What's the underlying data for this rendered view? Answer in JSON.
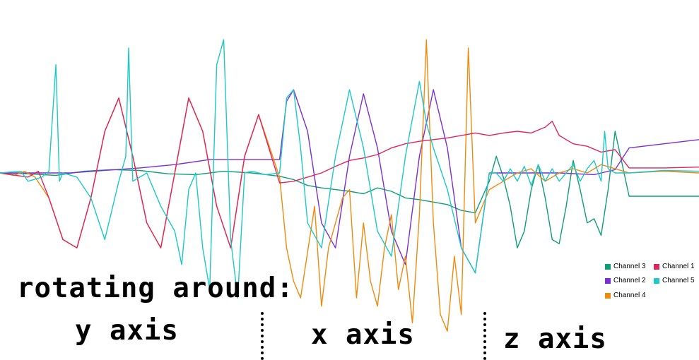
{
  "chart_data": {
    "type": "line",
    "title": "",
    "xlabel": "",
    "ylabel": "",
    "grid": false,
    "axes_visible": false,
    "x_range": [
      0,
      100
    ],
    "y_range": [
      -1,
      1
    ],
    "legend_position": "bottom-right",
    "annotations": {
      "heading": "rotating around:",
      "segments": [
        "y axis",
        "x axis",
        "z axis"
      ],
      "segment_boundaries": [
        37.5,
        69.3
      ]
    },
    "series": [
      {
        "name": "Channel 3",
        "color": "#0f9d78",
        "legend_order": 0,
        "x": [
          0,
          4,
          8,
          12,
          16,
          20,
          24,
          28,
          32,
          36,
          40,
          42,
          44,
          46,
          48,
          50,
          52,
          54,
          56,
          58,
          60,
          62,
          64,
          66,
          68,
          70,
          71,
          72,
          73,
          74,
          75,
          76,
          77,
          78,
          79,
          80,
          81,
          82,
          83,
          84,
          85,
          86,
          87,
          88,
          90,
          95,
          100
        ],
        "y": [
          0.0,
          -0.01,
          -0.03,
          0.02,
          0.04,
          0.03,
          -0.01,
          -0.02,
          0.02,
          0.0,
          -0.04,
          -0.08,
          -0.15,
          -0.18,
          -0.2,
          -0.22,
          -0.25,
          -0.18,
          -0.22,
          -0.3,
          -0.32,
          -0.35,
          -0.38,
          -0.45,
          -0.48,
          -0.1,
          0.2,
          -0.05,
          -0.4,
          -0.9,
          -0.7,
          -0.2,
          0.1,
          -0.3,
          -0.8,
          -0.85,
          -0.4,
          0.15,
          -0.2,
          -0.6,
          -0.55,
          -0.75,
          -0.2,
          0.5,
          -0.28,
          -0.28,
          -0.28
        ]
      },
      {
        "name": "Channel 2",
        "color": "#7b2fd0",
        "legend_order": 1,
        "x": [
          0,
          10,
          20,
          25,
          30,
          35,
          40,
          41,
          42,
          44,
          46,
          48,
          50,
          52,
          54,
          56,
          58,
          60,
          62,
          64,
          66,
          68,
          70,
          75,
          80,
          85,
          88,
          90,
          95,
          100
        ],
        "y": [
          0.0,
          0.0,
          0.06,
          0.1,
          0.16,
          0.16,
          0.16,
          0.86,
          1.0,
          0.5,
          -0.6,
          -0.9,
          0.2,
          0.95,
          0.3,
          -0.7,
          -1.1,
          0.2,
          1.0,
          0.3,
          -0.9,
          -1.2,
          0.0,
          0.0,
          0.0,
          -0.02,
          0.04,
          0.3,
          0.35,
          0.4
        ]
      },
      {
        "name": "Channel 4",
        "color": "#f08a0c",
        "legend_order": 2,
        "x": [
          0,
          2,
          3.5,
          5,
          7,
          9,
          11,
          13,
          15,
          17,
          19,
          21,
          23,
          25,
          27,
          29,
          31,
          33,
          35,
          37,
          40,
          41,
          42,
          43,
          45,
          46,
          47,
          48,
          49,
          50,
          51,
          52,
          53,
          54,
          55,
          56,
          57,
          58,
          59,
          60,
          61,
          62,
          63,
          64,
          65,
          66,
          67,
          68,
          70,
          72,
          74,
          76,
          78,
          80,
          82,
          84,
          86,
          88,
          90,
          95,
          100
        ],
        "y": [
          0.0,
          -0.03,
          0.02,
          -0.05,
          -0.3,
          -0.8,
          -0.9,
          -0.3,
          0.5,
          0.9,
          0.2,
          -0.6,
          -0.9,
          0.0,
          0.9,
          0.5,
          -0.4,
          -0.9,
          0.2,
          0.7,
          -0.05,
          -0.9,
          -1.3,
          -1.5,
          -0.4,
          -1.6,
          -0.9,
          -0.6,
          -0.3,
          -0.2,
          -1.5,
          -0.6,
          -1.3,
          -1.6,
          -0.9,
          -0.5,
          -1.4,
          -1.0,
          -1.8,
          -0.5,
          1.6,
          -0.6,
          -1.7,
          -1.9,
          -1.0,
          -1.7,
          1.5,
          -0.6,
          -0.2,
          -0.1,
          0.0,
          0.05,
          -0.1,
          0.0,
          0.05,
          0.0,
          0.1,
          0.05,
          0.0,
          0.02,
          0.0
        ]
      },
      {
        "name": "Channel 1",
        "color": "#e0245c",
        "legend_order": 3,
        "x": [
          0,
          4,
          5.5,
          7,
          9,
          11,
          13,
          15,
          17,
          19,
          21,
          23,
          25,
          27,
          29,
          31,
          33,
          35,
          37,
          40,
          42,
          44,
          46,
          48,
          50,
          52,
          54,
          56,
          58,
          60,
          62,
          64,
          66,
          68,
          70,
          72,
          74,
          76,
          78,
          79,
          80,
          82,
          84,
          86,
          88,
          90,
          95,
          100
        ],
        "y": [
          0.0,
          -0.05,
          0.02,
          -0.3,
          -0.8,
          -0.9,
          -0.3,
          0.5,
          0.9,
          0.2,
          -0.6,
          -0.9,
          0.0,
          0.9,
          0.5,
          -0.4,
          -0.9,
          0.2,
          0.7,
          -0.12,
          -0.1,
          -0.05,
          0.0,
          0.08,
          0.15,
          0.18,
          0.22,
          0.3,
          0.35,
          0.38,
          0.4,
          0.42,
          0.45,
          0.48,
          0.45,
          0.48,
          0.5,
          0.48,
          0.55,
          0.62,
          0.45,
          0.35,
          0.32,
          0.25,
          0.28,
          0.06,
          0.06,
          0.07
        ]
      },
      {
        "name": "Channel 5",
        "color": "#1cc8c8",
        "legend_order": 4,
        "x": [
          0,
          3,
          4,
          6,
          7,
          8,
          8.5,
          9,
          11,
          13,
          15,
          17,
          18,
          18.4,
          19,
          21,
          23,
          25,
          26,
          27,
          28,
          29,
          30,
          31,
          32,
          33,
          34,
          35,
          36,
          38,
          40,
          41,
          42,
          43,
          44,
          46,
          48,
          50,
          52,
          54,
          56,
          58,
          60,
          61,
          62,
          64,
          66,
          68,
          70,
          71,
          72,
          73,
          74,
          75,
          76,
          77,
          78,
          79,
          80,
          81,
          82,
          83,
          84,
          85,
          86,
          86.5,
          87,
          88,
          90,
          95,
          100
        ],
        "y": [
          0.0,
          0.02,
          -0.1,
          -0.05,
          0.02,
          1.3,
          -0.1,
          0.0,
          -0.05,
          -0.3,
          -0.8,
          -0.1,
          0.2,
          1.5,
          -0.1,
          0.0,
          -0.4,
          -0.7,
          -1.1,
          -0.2,
          0.0,
          -0.9,
          -1.4,
          1.3,
          1.6,
          -0.8,
          -1.5,
          0.0,
          0.02,
          -0.02,
          0.0,
          0.9,
          1.0,
          0.3,
          -0.6,
          -0.9,
          0.2,
          1.0,
          0.3,
          -0.7,
          -1.0,
          0.2,
          1.1,
          0.6,
          0.3,
          -0.2,
          -0.9,
          -1.2,
          0.0,
          0.0,
          -0.1,
          0.05,
          -0.1,
          0.08,
          -0.15,
          0.1,
          -0.1,
          0.05,
          -0.1,
          0.0,
          0.1,
          -0.1,
          0.05,
          0.15,
          -0.1,
          0.5,
          0.05,
          0.0,
          0.0,
          0.03,
          0.02
        ]
      }
    ],
    "legend": {
      "items": [
        "Channel 3",
        "Channel 1",
        "Channel 2",
        "Channel 5",
        "Channel 4"
      ]
    }
  }
}
